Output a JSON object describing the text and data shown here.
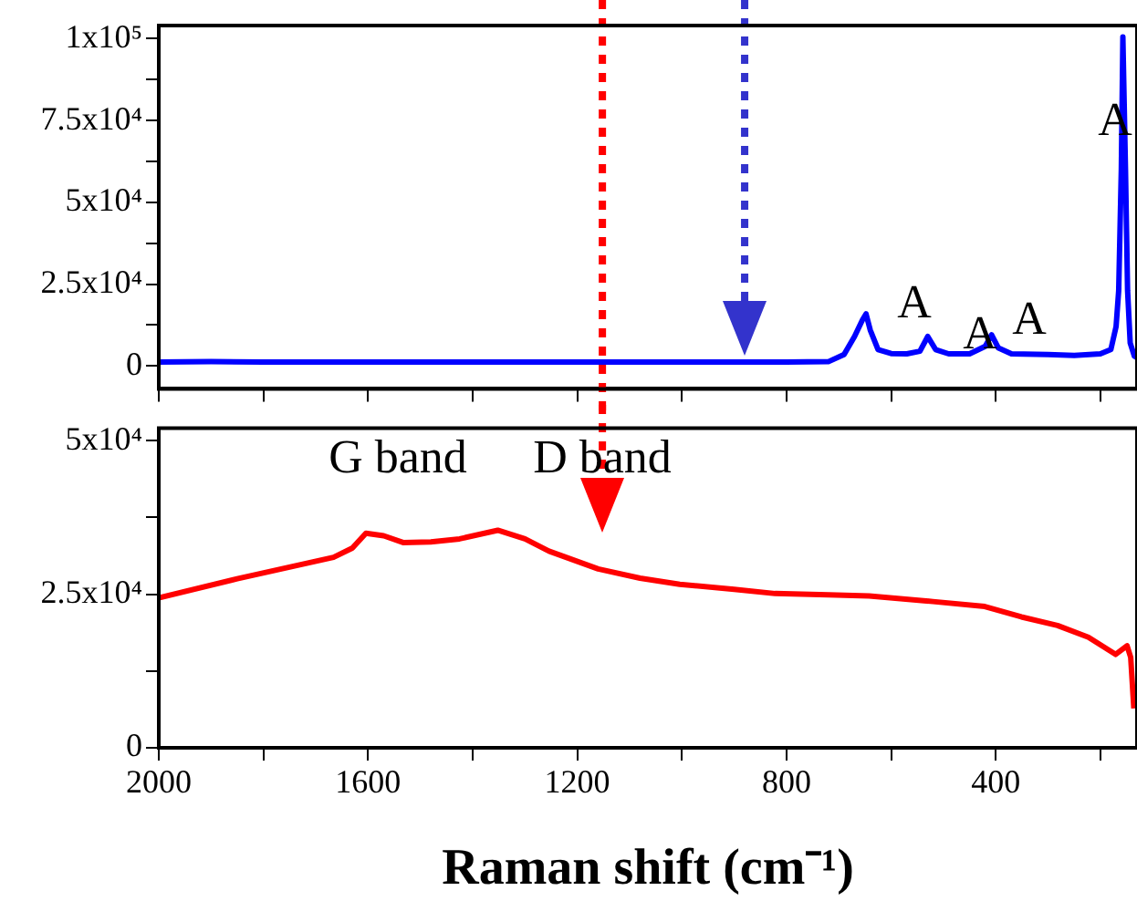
{
  "chart_data": [
    {
      "type": "line",
      "marker": "none",
      "tick_labels": "y",
      "xlim": [
        2000,
        130
      ],
      "ylim": [
        -7000,
        104000
      ],
      "xticks": [
        {
          "value": 2000,
          "label": null
        },
        {
          "value": 1800,
          "label": null
        },
        {
          "value": 1600,
          "label": null
        },
        {
          "value": 1400,
          "label": null
        },
        {
          "value": 1200,
          "label": null
        },
        {
          "value": 1000,
          "label": null
        },
        {
          "value": 800,
          "label": null
        },
        {
          "value": 600,
          "label": null
        },
        {
          "value": 400,
          "label": null
        },
        {
          "value": 200,
          "label": null
        }
      ],
      "yticks": [
        {
          "value": 0,
          "label": "0"
        },
        {
          "value": 12500,
          "label": null
        },
        {
          "value": 25000,
          "label": "2.5x10⁴"
        },
        {
          "value": 37500,
          "label": null
        },
        {
          "value": 50000,
          "label": "5x10⁴"
        },
        {
          "value": 62500,
          "label": null
        },
        {
          "value": 75000,
          "label": "7.5x10⁴"
        },
        {
          "value": 87500,
          "label": null
        },
        {
          "value": 100000,
          "label": "1x10⁵"
        }
      ],
      "series": [
        {
          "color": "#0000ff",
          "x": [
            2000,
            1900,
            1800,
            1600,
            1400,
            1200,
            1000,
            800,
            720,
            690,
            670,
            655,
            648,
            640,
            625,
            600,
            570,
            545,
            530,
            515,
            490,
            450,
            420,
            408,
            395,
            370,
            300,
            250,
            200,
            180,
            170,
            165,
            160,
            157,
            152,
            148,
            143,
            135,
            130
          ],
          "values": [
            1200,
            1300,
            1200,
            1200,
            1200,
            1200,
            1200,
            1200,
            1300,
            3500,
            9000,
            14000,
            15900,
            11000,
            5000,
            3800,
            3700,
            4500,
            9000,
            5000,
            3700,
            3700,
            6000,
            9500,
            5500,
            3700,
            3500,
            3200,
            3700,
            5000,
            12000,
            23000,
            60000,
            100500,
            60000,
            23000,
            7000,
            3000,
            2500
          ]
        }
      ],
      "annotations": [
        "A",
        "A",
        "A",
        "A"
      ],
      "ref_lines": [
        {
          "axis": "x",
          "value": 1152,
          "color": "#ff0000",
          "line_style": "dotted"
        },
        {
          "axis": "x",
          "value": 880,
          "color": "#3333cc",
          "line_style": "dotted"
        }
      ]
    },
    {
      "type": "line",
      "marker": "none",
      "xlabel": "Raman shift (cm⁻¹)",
      "xlim": [
        2000,
        130
      ],
      "ylim": [
        0,
        52000
      ],
      "xticks": [
        2000,
        {
          "value": 1800,
          "label": null
        },
        1600,
        {
          "value": 1400,
          "label": null
        },
        1200,
        {
          "value": 1000,
          "label": null
        },
        800,
        {
          "value": 600,
          "label": null
        },
        400,
        {
          "value": 200,
          "label": null
        }
      ],
      "yticks": [
        {
          "value": 0,
          "label": "0"
        },
        {
          "value": 12500,
          "label": null
        },
        {
          "value": 25000,
          "label": "2.5x10⁴"
        },
        {
          "value": 37500,
          "label": null
        },
        {
          "value": 50000,
          "label": "5x10⁴"
        }
      ],
      "series": [
        {
          "color": "#ff0000",
          "x": [
            2000,
            1850,
            1666,
            1630,
            1604,
            1570,
            1533,
            1480,
            1425,
            1352,
            1300,
            1254,
            1160,
            1080,
            1004,
            900,
            822,
            720,
            642,
            520,
            421,
            351,
            282,
            223,
            171,
            149,
            142,
            136
          ],
          "values": [
            24400,
            27500,
            31000,
            32500,
            34900,
            34500,
            33400,
            33500,
            34000,
            35400,
            34000,
            32000,
            29100,
            27600,
            26600,
            25800,
            25100,
            24900,
            24700,
            23800,
            23000,
            21300,
            19900,
            18000,
            15200,
            16600,
            14700,
            6400
          ]
        }
      ],
      "annotations": [
        "G band",
        "D band"
      ],
      "ref_lines": [
        {
          "axis": "x",
          "value": 1152,
          "color": "#ff0000",
          "line_style": "dotted"
        }
      ]
    }
  ]
}
